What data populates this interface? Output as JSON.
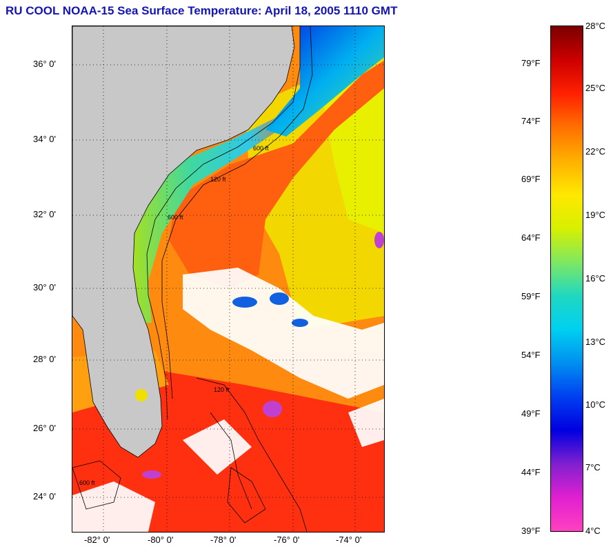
{
  "title": "RU COOL  NOAA-15  Sea Surface Temperature:  April 18, 2005 1110 GMT",
  "latitude_labels": [
    "36° 0'",
    "34° 0'",
    "32° 0'",
    "30° 0'",
    "28° 0'",
    "26° 0'",
    "24° 0'"
  ],
  "longitude_labels": [
    "-82° 0'",
    "-80° 0'",
    "-78° 0'",
    "-76° 0'",
    "-74° 0'"
  ],
  "contour_labels": [
    "120 ft",
    "600 ft",
    "600 ft",
    "120 ft",
    "600 ft"
  ],
  "colorbar": {
    "fahrenheit": [
      "79°F",
      "74°F",
      "69°F",
      "64°F",
      "59°F",
      "54°F",
      "49°F",
      "44°F",
      "39°F"
    ],
    "celsius": [
      "28°C",
      "25°C",
      "22°C",
      "19°C",
      "16°C",
      "13°C",
      "10°C",
      "7°C",
      "4°C"
    ],
    "colors": [
      "#7a0000",
      "#cc0000",
      "#ff2000",
      "#ff7000",
      "#ffb000",
      "#ffe800",
      "#d8f000",
      "#80e860",
      "#20d8c0",
      "#00d0f0",
      "#0090f0",
      "#0040f0",
      "#0000e0",
      "#8020d0",
      "#e020d0",
      "#ff40c0"
    ]
  }
}
